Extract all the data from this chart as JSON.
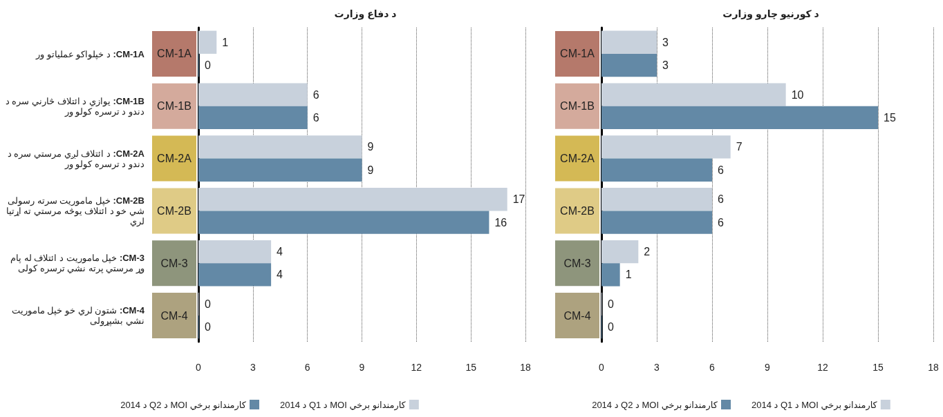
{
  "chart_data": [
    {
      "type": "bar",
      "orientation": "horizontal",
      "title": "د دفاع وزارت",
      "categories": [
        "CM-1A",
        "CM-1B",
        "CM-2A",
        "CM-2B",
        "CM-3",
        "CM-4"
      ],
      "series": [
        {
          "name": "د 2014 Q1 د MOI کارمندانو برخي",
          "color": "#c8d1dc",
          "values": [
            1,
            6,
            9,
            17,
            4,
            0
          ]
        },
        {
          "name": "د 2014 Q2 د MOI کارمندانو برخي",
          "color": "#6389a6",
          "values": [
            0,
            6,
            9,
            16,
            4,
            0
          ]
        }
      ],
      "xlim": [
        0,
        18
      ],
      "xticks": [
        0,
        3,
        6,
        9,
        12,
        15,
        18
      ],
      "grid": "x",
      "legend": "bottom",
      "data_labels": true,
      "annotations": [
        "CM-1A: د خپلواکو عملياتو ور",
        "CM-1B: يوازي د ائتلاف څارني سره د دندو د ترسره کولو ور",
        "CM-2A: د ائتلاف لږي مرستي سره د دندو د ترسره کولو ور",
        "CM-2B: خپل ماموريت سرته رسولی شي خو د ائتلاف يوڅه مرستي ته اړتيا لري",
        "CM-3: خپل ماموريت د ائتلاف له پام وړ مرستي پرته نشي ترسره کولی",
        "CM-4: شتون لري خو خپل ماموريت نشي بشپړولی"
      ]
    },
    {
      "type": "bar",
      "orientation": "horizontal",
      "title": "د کورنيو چارو وزارت",
      "categories": [
        "CM-1A",
        "CM-1B",
        "CM-2A",
        "CM-2B",
        "CM-3",
        "CM-4"
      ],
      "series": [
        {
          "name": "د 2014 Q1 د MOI کارمندانو برخي",
          "color": "#c8d1dc",
          "values": [
            3,
            10,
            7,
            6,
            2,
            0
          ]
        },
        {
          "name": "د 2014 Q2 د MOI کارمندانو برخي",
          "color": "#6389a6",
          "values": [
            3,
            15,
            6,
            6,
            1,
            0
          ]
        }
      ],
      "xlim": [
        0,
        18
      ],
      "xticks": [
        0,
        3,
        6,
        9,
        12,
        15,
        18
      ],
      "grid": "x",
      "legend": "bottom",
      "data_labels": true
    }
  ]
}
